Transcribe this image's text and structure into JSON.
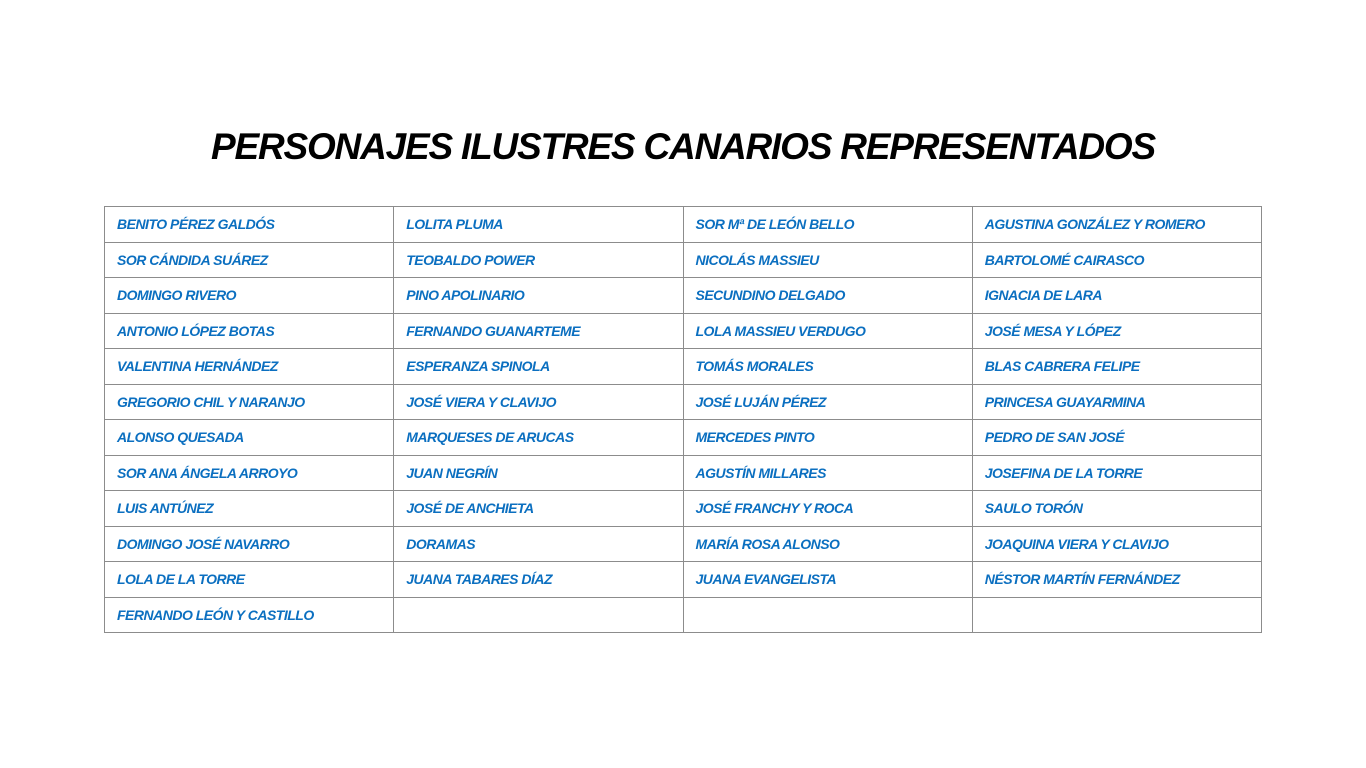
{
  "title": "PERSONAJES ILUSTRES CANARIOS REPRESENTADOS",
  "colors": {
    "name_text": "#0b6fc0",
    "border": "#8c8c8c",
    "title": "#000000"
  },
  "rows": [
    [
      "BENITO PÉREZ GALDÓS",
      "LOLITA PLUMA",
      "SOR Mª DE LEÓN BELLO",
      "AGUSTINA GONZÁLEZ Y ROMERO"
    ],
    [
      "SOR CÁNDIDA SUÁREZ",
      "TEOBALDO POWER",
      "NICOLÁS MASSIEU",
      "BARTOLOMÉ CAIRASCO"
    ],
    [
      "DOMINGO RIVERO",
      "PINO APOLINARIO",
      "SECUNDINO DELGADO",
      "IGNACIA DE LARA"
    ],
    [
      "ANTONIO LÓPEZ BOTAS",
      "FERNANDO GUANARTEME",
      "LOLA MASSIEU VERDUGO",
      "JOSÉ MESA Y LÓPEZ"
    ],
    [
      "VALENTINA HERNÁNDEZ",
      "ESPERANZA SPINOLA",
      "TOMÁS MORALES",
      "BLAS CABRERA FELIPE"
    ],
    [
      "GREGORIO CHIL Y NARANJO",
      "JOSÉ VIERA Y CLAVIJO",
      "JOSÉ LUJÁN PÉREZ",
      "PRINCESA GUAYARMINA"
    ],
    [
      "ALONSO QUESADA",
      "MARQUESES DE ARUCAS",
      "MERCEDES PINTO",
      "PEDRO DE SAN JOSÉ"
    ],
    [
      "SOR ANA ÁNGELA ARROYO",
      "JUAN NEGRÍN",
      "AGUSTÍN MILLARES",
      "JOSEFINA DE LA TORRE"
    ],
    [
      "LUIS ANTÚNEZ",
      "JOSÉ DE ANCHIETA",
      "JOSÉ FRANCHY Y ROCA",
      "SAULO TORÓN"
    ],
    [
      "DOMINGO JOSÉ NAVARRO",
      "DORAMAS",
      "MARÍA ROSA ALONSO",
      "JOAQUINA VIERA Y CLAVIJO"
    ],
    [
      "LOLA DE LA TORRE",
      "JUANA TABARES DÍAZ",
      "JUANA EVANGELISTA",
      "NÉSTOR MARTÍN FERNÁNDEZ"
    ],
    [
      "FERNANDO LEÓN Y CASTILLO",
      "",
      "",
      ""
    ]
  ]
}
